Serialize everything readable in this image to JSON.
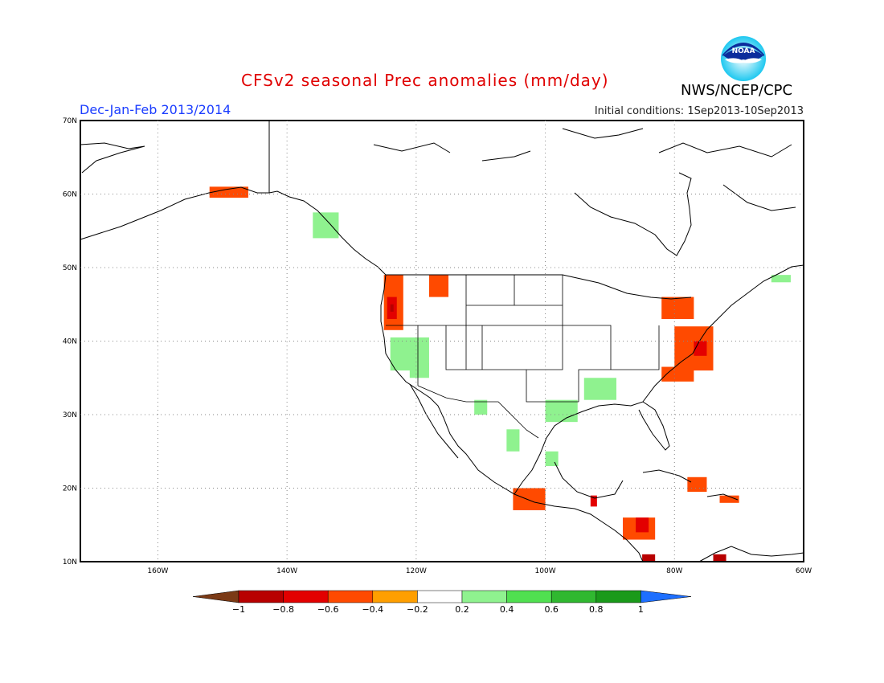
{
  "title": "CFSv2 seasonal Prec anomalies (mm/day)",
  "season": "Dec-Jan-Feb 2013/2014",
  "initial_conditions": "Initial conditions: 1Sep2013-10Sep2013",
  "agency": "NWS/NCEP/CPC",
  "logo_text": "NOAA",
  "map": {
    "lon_range": [
      -172,
      -60
    ],
    "lat_range": [
      10,
      70
    ],
    "lon_ticks": [
      "160W",
      "140W",
      "120W",
      "100W",
      "80W",
      "60W"
    ],
    "lat_ticks": [
      "10N",
      "20N",
      "30N",
      "40N",
      "50N",
      "60N",
      "70N"
    ],
    "gridlines": "dotted"
  },
  "colorbar": {
    "ticks": [
      "-1",
      "-0.8",
      "-0.6",
      "-0.4",
      "-0.2",
      "0.2",
      "0.4",
      "0.6",
      "0.8",
      "1"
    ],
    "colors": [
      "#7b3a16",
      "#b80000",
      "#e30000",
      "#ff4a00",
      "#ff9f00",
      "#ffffff",
      "#8ff28f",
      "#50e050",
      "#30b830",
      "#1a9a1a",
      "#1e6fff"
    ]
  },
  "anomaly_regions": [
    {
      "label": "Alaska south coast",
      "class": "-0.4",
      "lon": [
        -152,
        -146
      ],
      "lat": [
        59.5,
        61
      ]
    },
    {
      "label": "Southeast Alaska",
      "class": "0.2",
      "lon": [
        -136,
        -132
      ],
      "lat": [
        54,
        57.5
      ]
    },
    {
      "label": "Oregon/Washington coast",
      "class": "-0.4",
      "lon": [
        -125,
        -122
      ],
      "lat": [
        41.5,
        49
      ]
    },
    {
      "label": "Oregon coast core",
      "class": "-0.6",
      "lon": [
        -124.5,
        -123
      ],
      "lat": [
        43,
        46
      ]
    },
    {
      "label": "Oregon coast peak",
      "class": "-0.8",
      "lon": [
        -124,
        -123.5
      ],
      "lat": [
        44,
        45
      ]
    },
    {
      "label": "Idaho",
      "class": "-0.4",
      "lon": [
        -118,
        -115
      ],
      "lat": [
        46,
        49
      ]
    },
    {
      "label": "California",
      "class": "0.2",
      "lon": [
        -124,
        -118
      ],
      "lat": [
        36,
        40.5
      ]
    },
    {
      "label": "Southern California",
      "class": "0.2",
      "lon": [
        -121,
        -118
      ],
      "lat": [
        35,
        37
      ]
    },
    {
      "label": "Arizona",
      "class": "0.2",
      "lon": [
        -111,
        -109
      ],
      "lat": [
        30,
        32
      ]
    },
    {
      "label": "Texas",
      "class": "0.2",
      "lon": [
        -100,
        -95
      ],
      "lat": [
        29,
        32
      ]
    },
    {
      "label": "Arkansas/Louisiana",
      "class": "0.2",
      "lon": [
        -94,
        -89
      ],
      "lat": [
        32,
        35
      ]
    },
    {
      "label": "Mexico central",
      "class": "0.2",
      "lon": [
        -106,
        -104
      ],
      "lat": [
        25,
        28
      ]
    },
    {
      "label": "Mexico Gulf coast",
      "class": "0.2",
      "lon": [
        -100,
        -98
      ],
      "lat": [
        23,
        25
      ]
    },
    {
      "label": "Great Lakes",
      "class": "-0.4",
      "lon": [
        -82,
        -77
      ],
      "lat": [
        43,
        46
      ]
    },
    {
      "label": "Mid-Atlantic",
      "class": "-0.4",
      "lon": [
        -80,
        -74
      ],
      "lat": [
        36,
        42
      ]
    },
    {
      "label": "Chesapeake",
      "class": "-0.6",
      "lon": [
        -77,
        -75
      ],
      "lat": [
        38,
        40
      ]
    },
    {
      "label": "Carolinas",
      "class": "-0.4",
      "lon": [
        -82,
        -77
      ],
      "lat": [
        34.5,
        36.5
      ]
    },
    {
      "label": "Quebec east",
      "class": "0.2",
      "lon": [
        -65,
        -62
      ],
      "lat": [
        48,
        49
      ]
    },
    {
      "label": "Southwest Mexico",
      "class": "-0.4",
      "lon": [
        -105,
        -100
      ],
      "lat": [
        17,
        20
      ]
    },
    {
      "label": "Southern Mexico",
      "class": "-0.6",
      "lon": [
        -93,
        -92
      ],
      "lat": [
        17.5,
        19
      ]
    },
    {
      "label": "Honduras",
      "class": "-0.4",
      "lon": [
        -88,
        -83
      ],
      "lat": [
        13,
        16
      ]
    },
    {
      "label": "Honduras core",
      "class": "-0.6",
      "lon": [
        -86,
        -84
      ],
      "lat": [
        14,
        16
      ]
    },
    {
      "label": "Costa Rica",
      "class": "-0.8",
      "lon": [
        -85,
        -83
      ],
      "lat": [
        10,
        11
      ]
    },
    {
      "label": "Colombia north",
      "class": "-0.8",
      "lon": [
        -74,
        -72
      ],
      "lat": [
        10,
        11
      ]
    },
    {
      "label": "Cuba",
      "class": "-0.4",
      "lon": [
        -78,
        -75
      ],
      "lat": [
        19.5,
        21.5
      ]
    },
    {
      "label": "Hispaniola",
      "class": "-0.4",
      "lon": [
        -73,
        -70
      ],
      "lat": [
        18,
        19
      ]
    }
  ]
}
